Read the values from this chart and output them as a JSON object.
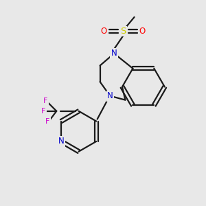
{
  "background_color": "#e8e8e8",
  "bond_color": "#1a1a1a",
  "N_color": "#0000cc",
  "S_color": "#cccc00",
  "O_color": "#ff0000",
  "F_color": "#cc00cc",
  "figsize": [
    3.0,
    3.0
  ],
  "dpi": 100,
  "lw": 1.6,
  "fs": 8.5,
  "xlim": [
    0,
    10
  ],
  "ylim": [
    0,
    10
  ]
}
